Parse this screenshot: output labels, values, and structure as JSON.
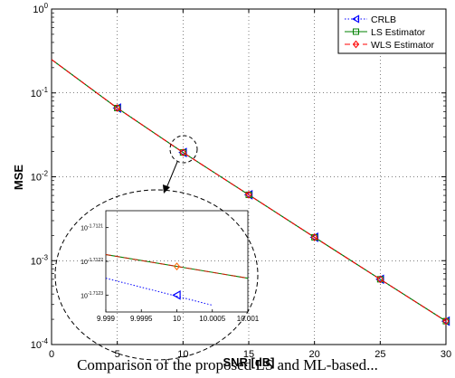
{
  "chart_data": {
    "type": "line",
    "x": [
      0,
      5,
      10,
      15,
      20,
      25,
      30
    ],
    "xlabel": "SNR [dB]",
    "ylabel": "MSE",
    "xlim": [
      0,
      30
    ],
    "ylim": [
      0.0001,
      1
    ],
    "yscale": "log",
    "x_ticks": [
      "0",
      "5",
      "10",
      "15",
      "20",
      "25",
      "30"
    ],
    "y_ticks": [
      {
        "base": "10",
        "exp": "0"
      },
      {
        "base": "10",
        "exp": "-1"
      },
      {
        "base": "10",
        "exp": "-2"
      },
      {
        "base": "10",
        "exp": "-3"
      },
      {
        "base": "10",
        "exp": "-4"
      }
    ],
    "grid": true,
    "legend_position": "top-right",
    "series": [
      {
        "name": "CRLB",
        "color": "#0000ff",
        "linestyle": "dotted",
        "marker": "triangle-left",
        "values": [
          0.25,
          0.066,
          0.0195,
          0.0061,
          0.0019,
          0.0006,
          0.00019
        ]
      },
      {
        "name": "LS Estimator",
        "color": "#008000",
        "linestyle": "solid",
        "marker": "square",
        "values": [
          0.25,
          0.066,
          0.0195,
          0.0061,
          0.0019,
          0.0006,
          0.00019
        ]
      },
      {
        "name": "WLS Estimator",
        "color": "#ff0000",
        "linestyle": "dashed",
        "marker": "diamond",
        "values": [
          0.25,
          0.066,
          0.0195,
          0.0061,
          0.0019,
          0.0006,
          0.00019
        ]
      }
    ],
    "inset": {
      "x_ticks": [
        "9.999",
        "9.9995",
        "10",
        "10.0005",
        "10.001"
      ],
      "y_ticks": [
        {
          "base": "10",
          "exp": "-1.7121"
        },
        {
          "base": "10",
          "exp": "-1.7122"
        },
        {
          "base": "10",
          "exp": "-1.7123"
        }
      ],
      "xlim": [
        9.999,
        10.001
      ],
      "ylim_exp": [
        -1.71235,
        -1.71205
      ],
      "estimator_line": {
        "x": [
          9.999,
          10.001
        ],
        "yexp": [
          -1.71218,
          -1.71225
        ]
      },
      "crlb_line": {
        "x": [
          9.999,
          10.0005
        ],
        "yexp": [
          -1.71225,
          -1.71233
        ]
      },
      "estimator_point": {
        "x": 10,
        "yexp": -1.712215
      },
      "crlb_point": {
        "x": 10,
        "yexp": -1.7123
      }
    }
  },
  "caption": "Comparison of the proposed LS and ML-based..."
}
